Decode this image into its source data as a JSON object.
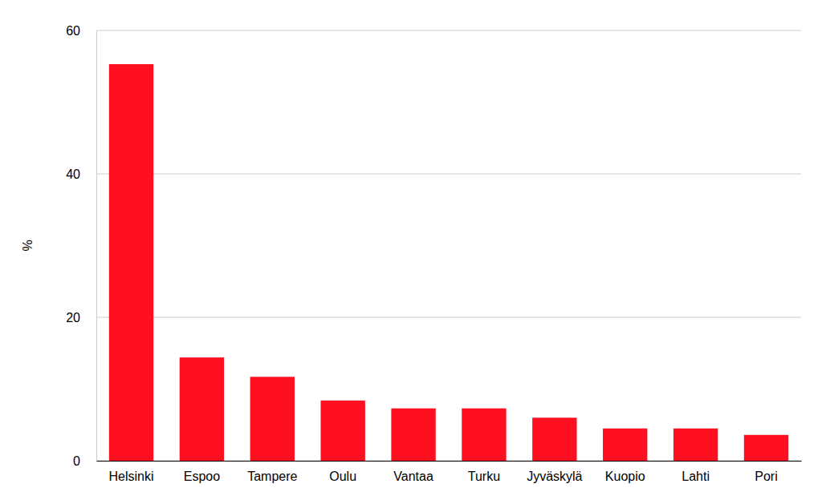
{
  "chart_data": {
    "type": "bar",
    "y_label": "%",
    "categories": [
      "Helsinki",
      "Espoo",
      "Tampere",
      "Oulu",
      "Vantaa",
      "Turku",
      "Jyväskylä",
      "Kuopio",
      "Lahti",
      "Pori"
    ],
    "values": [
      55.3,
      14.4,
      11.7,
      8.4,
      7.3,
      7.3,
      6.0,
      4.5,
      4.5,
      3.6
    ],
    "color": "#fe1021",
    "ylim": [
      0,
      60
    ],
    "yticks": [
      0,
      20,
      40,
      60
    ],
    "grid": true
  }
}
